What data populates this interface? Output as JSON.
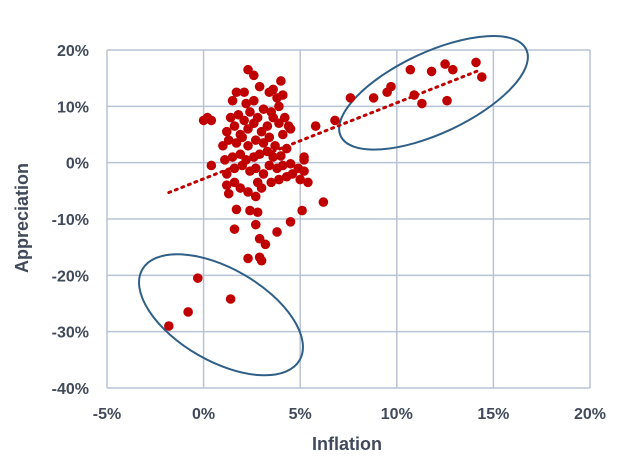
{
  "chart_data": {
    "type": "scatter",
    "title": "",
    "xlabel": "Inflation",
    "ylabel": "Appreciation",
    "xlim": [
      -0.05,
      0.2
    ],
    "ylim": [
      -0.4,
      0.2
    ],
    "x_ticks": [
      -0.05,
      0.0,
      0.05,
      0.1,
      0.15,
      0.2
    ],
    "x_tick_labels": [
      "-5%",
      "0%",
      "5%",
      "10%",
      "15%",
      "20%"
    ],
    "y_ticks": [
      -0.4,
      -0.3,
      -0.2,
      -0.1,
      0.0,
      0.1,
      0.2
    ],
    "y_tick_labels": [
      "-40%",
      "-30%",
      "-20%",
      "-10%",
      "0%",
      "10%",
      "20%"
    ],
    "grid": true,
    "legend": "none",
    "colors": {
      "points": "#c00000",
      "trendline": "#c00000",
      "ellipse": "#2f5f87",
      "grid": "#b8c3d6",
      "text": "#404a5a"
    },
    "trendline": {
      "style": "dotted",
      "x": [
        -0.018,
        0.142
      ],
      "y": [
        -0.053,
        0.163
      ]
    },
    "ellipses": [
      {
        "cx": 0.119,
        "cy": 0.124,
        "rx": 0.053,
        "ry": 0.072,
        "rotation_deg": -25
      },
      {
        "cx": 0.009,
        "cy": -0.27,
        "rx": 0.047,
        "ry": 0.082,
        "rotation_deg": 30
      }
    ],
    "points": [
      [
        -0.018,
        -0.29
      ],
      [
        -0.008,
        -0.265
      ],
      [
        -0.003,
        -0.205
      ],
      [
        0.014,
        -0.242
      ],
      [
        0.016,
        -0.118
      ],
      [
        0.023,
        -0.17
      ],
      [
        0.029,
        -0.168
      ],
      [
        0.03,
        -0.174
      ],
      [
        0.032,
        -0.145
      ],
      [
        0.029,
        -0.135
      ],
      [
        0.038,
        -0.123
      ],
      [
        0.027,
        -0.11
      ],
      [
        0.024,
        -0.085
      ],
      [
        0.028,
        -0.088
      ],
      [
        0.017,
        -0.083
      ],
      [
        0.013,
        -0.055
      ],
      [
        0.012,
        -0.04
      ],
      [
        0.016,
        -0.035
      ],
      [
        0.019,
        -0.045
      ],
      [
        0.023,
        -0.052
      ],
      [
        0.027,
        -0.06
      ],
      [
        0.03,
        -0.045
      ],
      [
        0.028,
        -0.035
      ],
      [
        0.035,
        -0.035
      ],
      [
        0.039,
        -0.03
      ],
      [
        0.043,
        -0.025
      ],
      [
        0.046,
        -0.02
      ],
      [
        0.05,
        -0.03
      ],
      [
        0.054,
        -0.035
      ],
      [
        0.052,
        -0.015
      ],
      [
        0.045,
        -0.105
      ],
      [
        0.051,
        -0.085
      ],
      [
        0.062,
        -0.07
      ],
      [
        0.012,
        -0.02
      ],
      [
        0.016,
        -0.01
      ],
      [
        0.02,
        -0.005
      ],
      [
        0.024,
        -0.015
      ],
      [
        0.027,
        -0.01
      ],
      [
        0.031,
        -0.02
      ],
      [
        0.034,
        -0.005
      ],
      [
        0.038,
        -0.01
      ],
      [
        0.041,
        -0.005
      ],
      [
        0.045,
        -0.002
      ],
      [
        0.049,
        -0.01
      ],
      [
        0.052,
        0.005
      ],
      [
        0.052,
        0.01
      ],
      [
        0.004,
        -0.005
      ],
      [
        0.011,
        0.005
      ],
      [
        0.015,
        0.01
      ],
      [
        0.019,
        0.015
      ],
      [
        0.022,
        0.005
      ],
      [
        0.026,
        0.01
      ],
      [
        0.029,
        0.015
      ],
      [
        0.033,
        0.02
      ],
      [
        0.036,
        0.01
      ],
      [
        0.04,
        0.012
      ],
      [
        0.043,
        0.025
      ],
      [
        0.01,
        0.03
      ],
      [
        0.013,
        0.04
      ],
      [
        0.017,
        0.035
      ],
      [
        0.02,
        0.045
      ],
      [
        0.023,
        0.03
      ],
      [
        0.027,
        0.04
      ],
      [
        0.031,
        0.035
      ],
      [
        0.034,
        0.045
      ],
      [
        0.037,
        0.03
      ],
      [
        0.041,
        0.05
      ],
      [
        0.045,
        0.06
      ],
      [
        0.012,
        0.055
      ],
      [
        0.016,
        0.065
      ],
      [
        0.019,
        0.05
      ],
      [
        0.023,
        0.06
      ],
      [
        0.026,
        0.07
      ],
      [
        0.03,
        0.055
      ],
      [
        0.033,
        0.065
      ],
      [
        0.036,
        0.08
      ],
      [
        0.039,
        0.07
      ],
      [
        0.042,
        0.08
      ],
      [
        0.044,
        0.065
      ],
      [
        0.014,
        0.08
      ],
      [
        0.018,
        0.085
      ],
      [
        0.021,
        0.075
      ],
      [
        0.024,
        0.09
      ],
      [
        0.028,
        0.08
      ],
      [
        0.031,
        0.095
      ],
      [
        0.035,
        0.09
      ],
      [
        0.039,
        0.1
      ],
      [
        0.038,
        0.115
      ],
      [
        0.034,
        0.125
      ],
      [
        0.036,
        0.13
      ],
      [
        0.041,
        0.12
      ],
      [
        0.022,
        0.105
      ],
      [
        0.026,
        0.11
      ],
      [
        0.015,
        0.11
      ],
      [
        0.017,
        0.125
      ],
      [
        0.021,
        0.125
      ],
      [
        0.029,
        0.135
      ],
      [
        0.04,
        0.145
      ],
      [
        0.023,
        0.165
      ],
      [
        0.026,
        0.155
      ],
      [
        0.0,
        0.075
      ],
      [
        0.002,
        0.08
      ],
      [
        0.004,
        0.075
      ],
      [
        0.058,
        0.065
      ],
      [
        0.068,
        0.075
      ],
      [
        0.076,
        0.115
      ],
      [
        0.088,
        0.115
      ],
      [
        0.095,
        0.125
      ],
      [
        0.097,
        0.135
      ],
      [
        0.107,
        0.165
      ],
      [
        0.109,
        0.12
      ],
      [
        0.113,
        0.105
      ],
      [
        0.118,
        0.162
      ],
      [
        0.126,
        0.11
      ],
      [
        0.125,
        0.175
      ],
      [
        0.129,
        0.165
      ],
      [
        0.141,
        0.178
      ],
      [
        0.144,
        0.152
      ]
    ]
  }
}
